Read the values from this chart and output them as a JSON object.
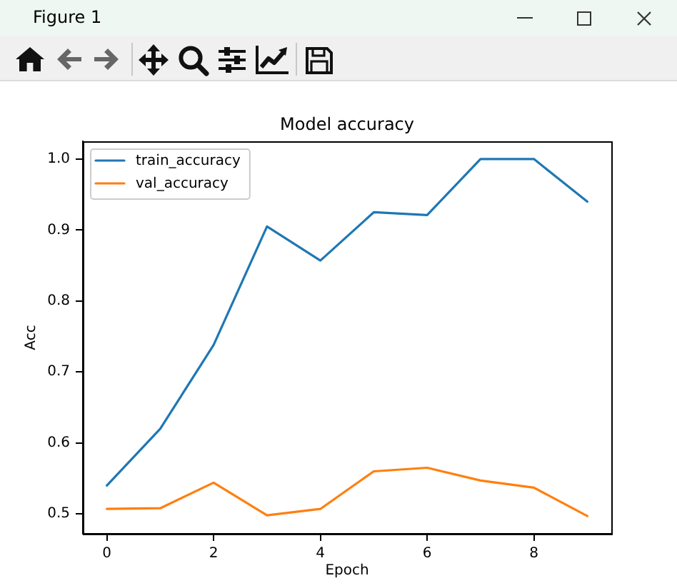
{
  "chart_data": {
    "type": "line",
    "title": "Model accuracy",
    "xlabel": "Epoch",
    "ylabel": "Acc",
    "annotations": [
      "Figure 1"
    ],
    "x": [
      0,
      1,
      2,
      3,
      4,
      5,
      6,
      7,
      8,
      9
    ],
    "series": [
      {
        "name": "train_accuracy",
        "color": "#1f77b4",
        "values": [
          0.54,
          0.62,
          0.738,
          0.905,
          0.857,
          0.925,
          0.921,
          1.0,
          1.0,
          0.94
        ]
      },
      {
        "name": "val_accuracy",
        "color": "#ff7f0e",
        "values": [
          0.507,
          0.508,
          0.544,
          0.498,
          0.507,
          0.56,
          0.565,
          0.547,
          0.537,
          0.497
        ]
      }
    ],
    "xlim": [
      -0.45,
      9.45
    ],
    "xticks": [
      0,
      2,
      4,
      6,
      8
    ],
    "ylim": [
      0.472,
      1.025
    ],
    "yticks": [
      0.5,
      0.6,
      0.7,
      0.8,
      0.9,
      {
        "value": 1,
        "label": "1.0"
      }
    ],
    "legend": "top left",
    "line_style": "solid"
  }
}
